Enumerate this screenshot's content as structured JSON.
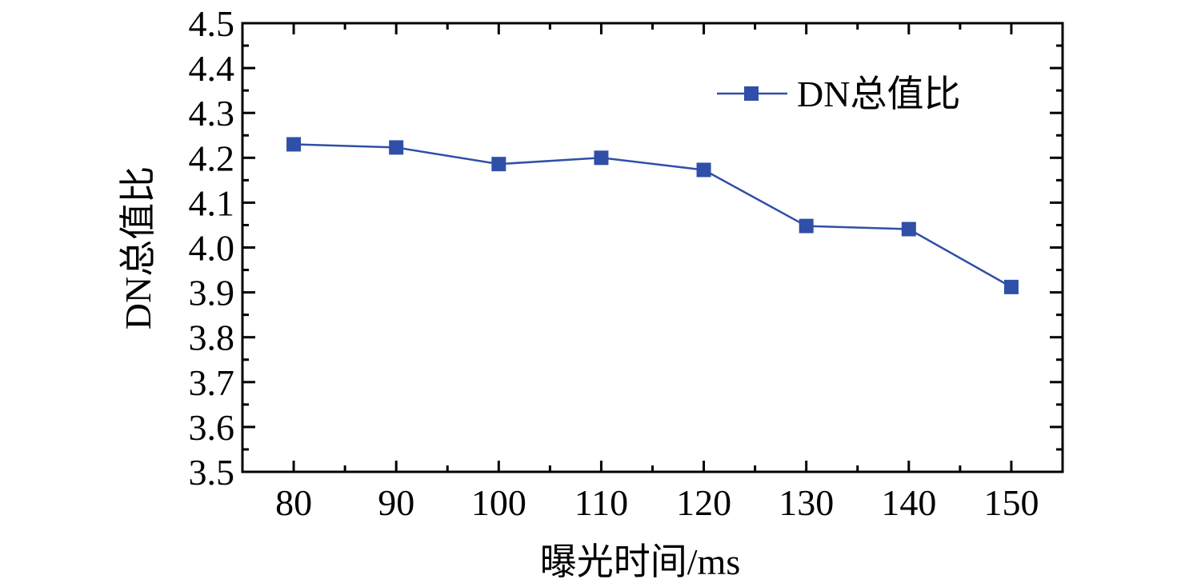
{
  "chart_data": {
    "type": "line",
    "title": "",
    "xlabel": "曝光时间/ms",
    "ylabel": "DN总值比",
    "x": [
      80,
      90,
      100,
      110,
      120,
      130,
      140,
      150
    ],
    "series": [
      {
        "name": "DN总值比",
        "values": [
          4.23,
          4.223,
          4.186,
          4.2,
          4.173,
          4.048,
          4.041,
          3.912
        ],
        "color": "#2f4fa8",
        "marker": "square"
      }
    ],
    "xlim": [
      75,
      155
    ],
    "ylim": [
      3.5,
      4.5
    ],
    "xticks": [
      "80",
      "90",
      "100",
      "110",
      "120",
      "130",
      "140",
      "150"
    ],
    "yticks": [
      "3.5",
      "3.6",
      "3.7",
      "3.8",
      "3.9",
      "4.0",
      "4.1",
      "4.2",
      "4.3",
      "4.4",
      "4.5"
    ],
    "grid": false,
    "legend": "top-right"
  }
}
